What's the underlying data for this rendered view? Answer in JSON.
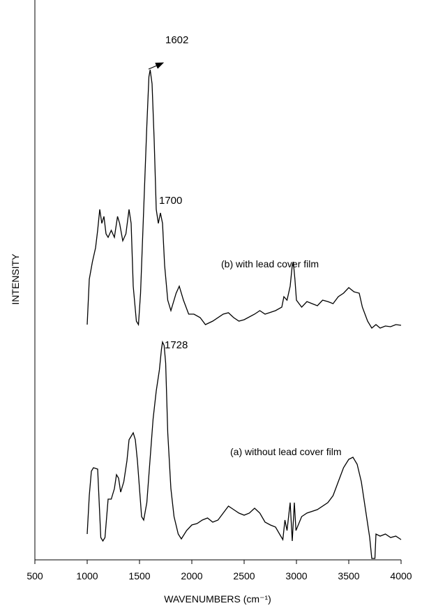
{
  "chart_data": {
    "type": "line",
    "xlabel": "WAVENUMBERS (cm⁻¹)",
    "ylabel": "INTENSITY",
    "xlim": [
      500,
      4000
    ],
    "xticks": [
      500,
      1000,
      1500,
      2000,
      2500,
      3000,
      3500,
      4000
    ],
    "ylim": [
      0,
      800
    ],
    "color": "#000000",
    "annotations": [
      "1602",
      "1700",
      "1728",
      "(b) with lead cover film",
      "(a) without lead cover film"
    ],
    "series": [
      {
        "x": [
          1000,
          1020,
          1050,
          1080,
          1100,
          1120,
          1140,
          1160,
          1180,
          1200,
          1230,
          1260,
          1290,
          1310,
          1340,
          1370,
          1400,
          1420,
          1440,
          1470,
          1490,
          1510,
          1540,
          1570,
          1590,
          1602,
          1620,
          1640,
          1660,
          1680,
          1700,
          1720,
          1740,
          1770,
          1800,
          1850,
          1880,
          1920,
          1970,
          2020,
          2080,
          2130,
          2200,
          2300,
          2350,
          2400,
          2450,
          2500,
          2600,
          2650,
          2700,
          2800,
          2860,
          2880,
          2910,
          2940,
          2960,
          2970,
          2985,
          3000,
          3050,
          3100,
          3150,
          3200,
          3250,
          3300,
          3350,
          3400,
          3450,
          3500,
          3550,
          3600,
          3630,
          3680,
          3720,
          3760,
          3800,
          3850,
          3900,
          3950,
          4000
        ],
        "values": [
          337,
          402,
          427,
          447,
          472,
          502,
          482,
          492,
          467,
          462,
          472,
          462,
          492,
          482,
          457,
          467,
          502,
          482,
          392,
          342,
          337,
          382,
          502,
          622,
          692,
          702,
          682,
          602,
          502,
          482,
          497,
          482,
          422,
          372,
          357,
          382,
          392,
          372,
          352,
          352,
          347,
          337,
          342,
          352,
          354,
          347,
          342,
          344,
          352,
          357,
          352,
          357,
          362,
          377,
          372,
          392,
          422,
          427,
          402,
          372,
          362,
          370,
          367,
          364,
          372,
          370,
          367,
          377,
          382,
          390,
          384,
          382,
          362,
          342,
          332,
          337,
          332,
          335,
          334,
          337,
          336
        ]
      },
      {
        "x": [
          1000,
          1020,
          1040,
          1060,
          1100,
          1130,
          1150,
          1170,
          1200,
          1230,
          1260,
          1280,
          1300,
          1320,
          1350,
          1380,
          1400,
          1420,
          1440,
          1460,
          1480,
          1500,
          1520,
          1540,
          1570,
          1600,
          1630,
          1660,
          1690,
          1710,
          1720,
          1735,
          1750,
          1770,
          1800,
          1830,
          1870,
          1900,
          1950,
          2000,
          2050,
          2100,
          2150,
          2200,
          2250,
          2300,
          2350,
          2400,
          2450,
          2500,
          2550,
          2600,
          2650,
          2700,
          2750,
          2800,
          2850,
          2870,
          2890,
          2910,
          2940,
          2960,
          2980,
          2995,
          3050,
          3100,
          3200,
          3300,
          3350,
          3400,
          3450,
          3500,
          3540,
          3580,
          3620,
          3660,
          3700,
          3720,
          3750,
          3760,
          3800,
          3850,
          3900,
          3950,
          4000
        ],
        "values": [
          37,
          92,
          127,
          132,
          130,
          32,
          27,
          32,
          87,
          87,
          102,
          122,
          117,
          97,
          112,
          142,
          172,
          177,
          182,
          172,
          142,
          102,
          62,
          57,
          82,
          142,
          202,
          242,
          272,
          302,
          312,
          307,
          282,
          182,
          102,
          62,
          37,
          30,
          42,
          50,
          52,
          57,
          60,
          54,
          57,
          67,
          77,
          72,
          67,
          64,
          67,
          74,
          67,
          54,
          50,
          47,
          34,
          29,
          57,
          42,
          82,
          27,
          82,
          42,
          62,
          67,
          72,
          82,
          92,
          112,
          132,
          144,
          147,
          137,
          112,
          72,
          32,
          2,
          2,
          37,
          34,
          37,
          32,
          34,
          29
        ]
      }
    ]
  }
}
